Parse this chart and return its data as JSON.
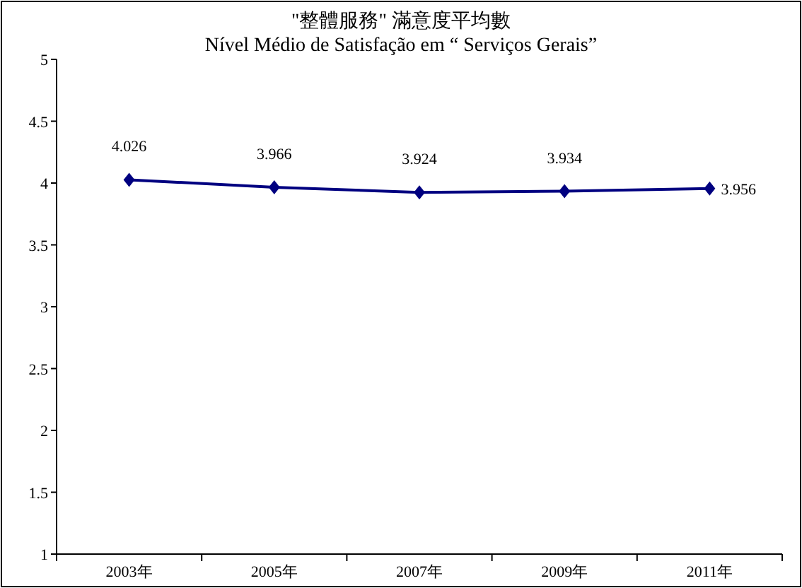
{
  "chart_data": {
    "type": "line",
    "title": "\"整體服務\" 滿意度平均數",
    "subtitle": "Nível Médio de Satisfação em  “ Serviços Gerais”",
    "categories": [
      "2003年",
      "2005年",
      "2007年",
      "2009年",
      "2011年"
    ],
    "series": [
      {
        "color": "#000080",
        "values": [
          4.026,
          3.966,
          3.924,
          3.934,
          3.956
        ]
      }
    ],
    "ylim": [
      1,
      5
    ],
    "yticks": [
      1,
      1.5,
      2,
      2.5,
      3,
      3.5,
      4,
      4.5,
      5
    ],
    "marker": "diamond",
    "line_style": "solid",
    "data_labels": true,
    "grid": false
  }
}
